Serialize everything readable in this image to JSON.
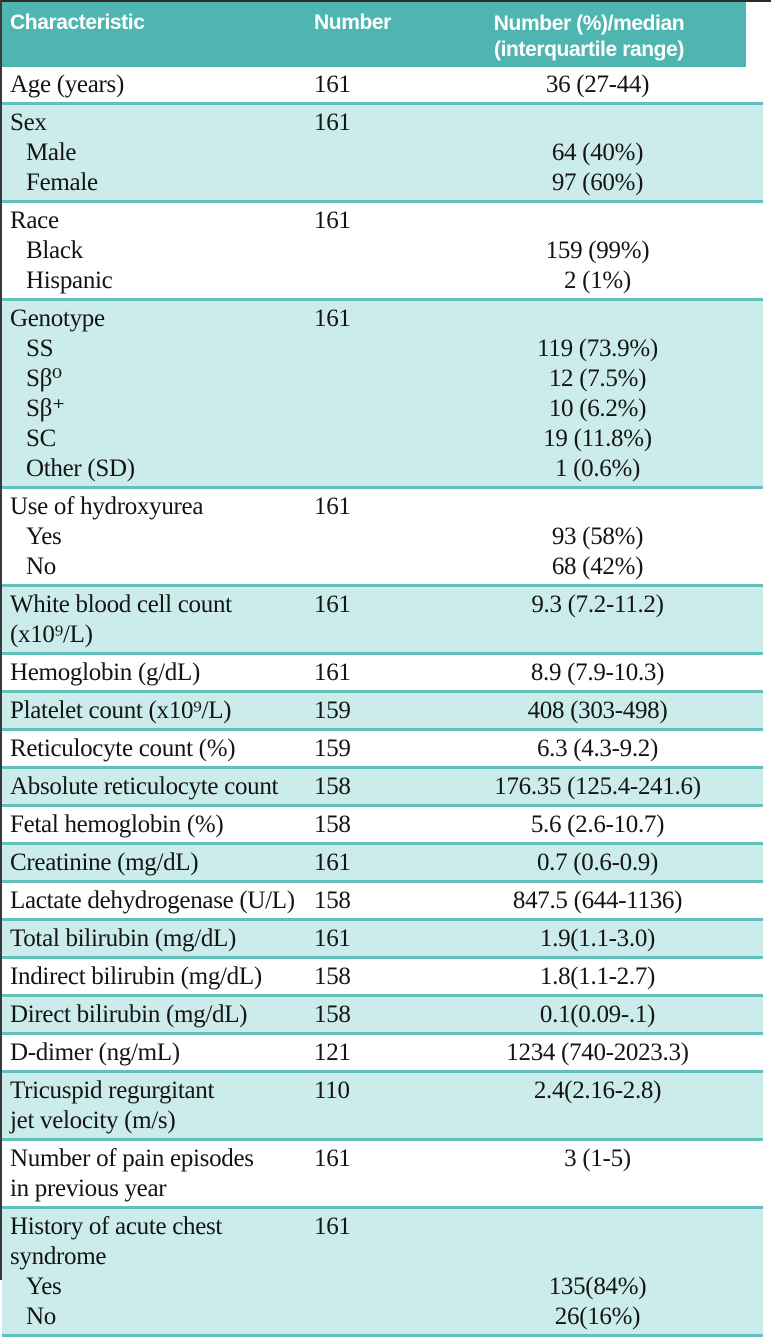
{
  "colors": {
    "header_bg": "#4fb5b0",
    "row_teal": "#cbeceb",
    "separator": "#63c0bc",
    "header_text": "#ffffff",
    "body_text": "#141414"
  },
  "table": {
    "header": {
      "col1": "Characteristic",
      "col2": "Number",
      "col3_line1": "Number (%)/median",
      "col3_line2": "(interquartile range)"
    },
    "sections": [
      {
        "bg": "white",
        "rows": [
          {
            "label": "Age (years)",
            "number": "161",
            "value": "36 (27-44)"
          }
        ]
      },
      {
        "bg": "teal",
        "rows": [
          {
            "label": "Sex",
            "number": "161",
            "value": ""
          },
          {
            "label": "Male",
            "indent": true,
            "number": "",
            "value": "64 (40%)"
          },
          {
            "label": "Female",
            "indent": true,
            "number": "",
            "value": "97 (60%)"
          }
        ]
      },
      {
        "bg": "white",
        "rows": [
          {
            "label": "Race",
            "number": "161",
            "value": ""
          },
          {
            "label": "Black",
            "indent": true,
            "number": "",
            "value": "159 (99%)"
          },
          {
            "label": "Hispanic",
            "indent": true,
            "number": "",
            "value": "2 (1%)"
          }
        ]
      },
      {
        "bg": "teal",
        "rows": [
          {
            "label": "Genotype",
            "number": "161",
            "value": ""
          },
          {
            "label": "SS",
            "indent": true,
            "number": "",
            "value": "119 (73.9%)"
          },
          {
            "label": "Sβ⁰",
            "indent": true,
            "number": "",
            "value": "12 (7.5%)"
          },
          {
            "label": "Sβ⁺",
            "indent": true,
            "number": "",
            "value": "10 (6.2%)"
          },
          {
            "label": "SC",
            "indent": true,
            "number": "",
            "value": "19 (11.8%)"
          },
          {
            "label": "Other (SD)",
            "indent": true,
            "number": "",
            "value": "1 (0.6%)"
          }
        ]
      },
      {
        "bg": "white",
        "rows": [
          {
            "label": "Use of hydroxyurea",
            "number": "161",
            "value": ""
          },
          {
            "label": "Yes",
            "indent": true,
            "number": "",
            "value": "93 (58%)"
          },
          {
            "label": "No",
            "indent": true,
            "number": "",
            "value": "68 (42%)"
          }
        ]
      },
      {
        "bg": "teal",
        "rows": [
          {
            "label": "White blood cell count (x10⁹/L)",
            "number": "161",
            "value": "9.3 (7.2-11.2)"
          }
        ]
      },
      {
        "bg": "white",
        "rows": [
          {
            "label": "Hemoglobin (g/dL)",
            "number": "161",
            "value": "8.9 (7.9-10.3)"
          }
        ]
      },
      {
        "bg": "teal",
        "rows": [
          {
            "label": "Platelet count (x10⁹/L)",
            "number": "159",
            "value": "408 (303-498)"
          }
        ]
      },
      {
        "bg": "white",
        "rows": [
          {
            "label": "Reticulocyte count (%)",
            "number": "159",
            "value": "6.3 (4.3-9.2)"
          }
        ]
      },
      {
        "bg": "teal",
        "rows": [
          {
            "label": "Absolute reticulocyte count",
            "number": "158",
            "value": "176.35 (125.4-241.6)"
          }
        ]
      },
      {
        "bg": "white",
        "rows": [
          {
            "label": "Fetal hemoglobin (%)",
            "number": "158",
            "value": "5.6 (2.6-10.7)"
          }
        ]
      },
      {
        "bg": "teal",
        "rows": [
          {
            "label": "Creatinine (mg/dL)",
            "number": "161",
            "value": "0.7 (0.6-0.9)"
          }
        ]
      },
      {
        "bg": "white",
        "rows": [
          {
            "label": "Lactate dehydrogenase (U/L)",
            "number": "158",
            "value": "847.5 (644-1136)"
          }
        ]
      },
      {
        "bg": "teal",
        "rows": [
          {
            "label": "Total bilirubin (mg/dL)",
            "number": "161",
            "value": "1.9(1.1-3.0)"
          }
        ]
      },
      {
        "bg": "white",
        "rows": [
          {
            "label": "Indirect bilirubin (mg/dL)",
            "number": "158",
            "value": "1.8(1.1-2.7)"
          }
        ]
      },
      {
        "bg": "teal",
        "rows": [
          {
            "label": "Direct bilirubin (mg/dL)",
            "number": "158",
            "value": "0.1(0.09-.1)"
          }
        ]
      },
      {
        "bg": "white",
        "rows": [
          {
            "label": "D-dimer (ng/mL)",
            "number": "121",
            "value": "1234 (740-2023.3)"
          }
        ]
      },
      {
        "bg": "teal",
        "rows": [
          {
            "label": "Tricuspid regurgitant\njet velocity (m/s)",
            "number": "110",
            "value": "2.4(2.16-2.8)"
          }
        ]
      },
      {
        "bg": "white",
        "rows": [
          {
            "label": "Number of pain episodes\nin previous year",
            "number": "161",
            "value": "3 (1-5)"
          }
        ]
      },
      {
        "bg": "teal",
        "rows": [
          {
            "label": "History of acute chest syndrome",
            "number": "161",
            "value": ""
          },
          {
            "label": "Yes",
            "indent": true,
            "number": "",
            "value": "135(84%)"
          },
          {
            "label": "No",
            "indent": true,
            "number": "",
            "value": "26(16%)"
          }
        ]
      }
    ]
  }
}
